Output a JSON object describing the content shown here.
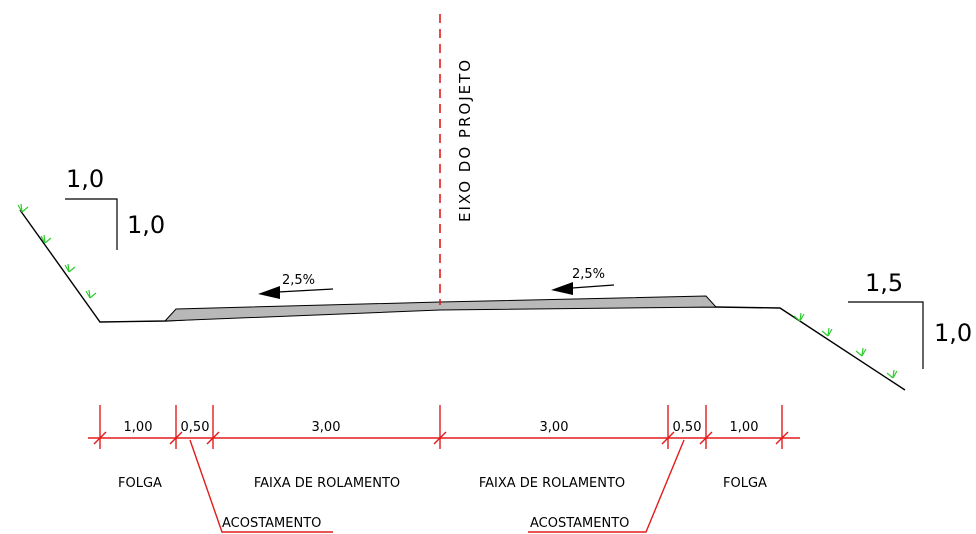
{
  "axis_label": "EIXO DO PROJETO",
  "slopes": [
    {
      "value": "2,5%"
    },
    {
      "value": "2,5%"
    }
  ],
  "left_slope_ratio": {
    "horizontal": "1,0",
    "vertical": "1,0"
  },
  "right_slope_ratio": {
    "horizontal": "1,5",
    "vertical": "1,0"
  },
  "dimensions": [
    "1,00",
    "0,50",
    "3,00",
    "3,00",
    "0,50",
    "1,00"
  ],
  "zone_labels": [
    "FOLGA",
    "FAIXA DE ROLAMENTO",
    "FAIXA DE ROLAMENTO",
    "FOLGA"
  ],
  "shoulder_labels": [
    "ACOSTAMENTO",
    "ACOSTAMENTO"
  ],
  "colors": {
    "axis": "#e31b1b",
    "dimension": "#e31b1b",
    "pavement_fill": "#b8b8b8",
    "grass": "#2ecc2e",
    "ground": "#000000"
  }
}
